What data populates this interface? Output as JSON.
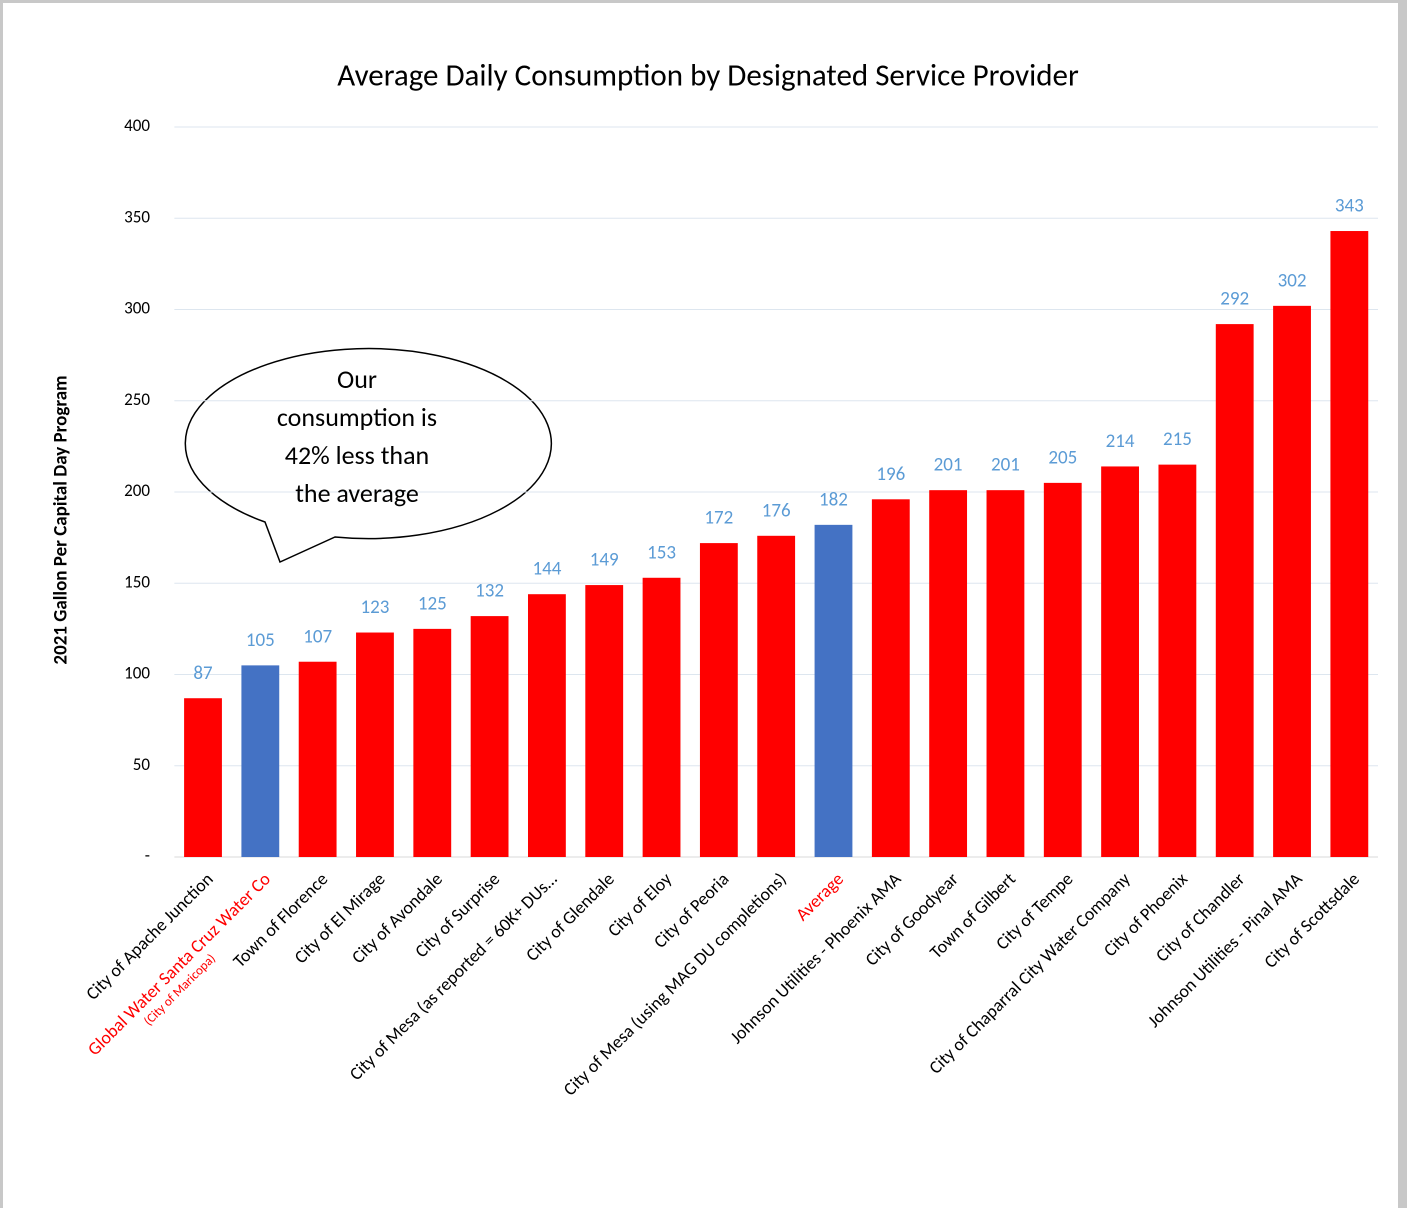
{
  "chart_data": {
    "type": "bar",
    "title": "Average Daily Consumption by Designated Service Provider",
    "y_label": "2021 Gallon Per Capital Day Program",
    "categories": [
      "City of Apache Junction",
      "Global Water Santa Cruz Water Co",
      "Town of Florence",
      "City of El Mirage",
      "City of Avondale",
      "City of Surprise",
      "City of Mesa (as reported = 60K+ DUs…",
      "City of Glendale",
      "City of Eloy",
      "City of Peoria",
      "City of Mesa (using MAG DU completions)",
      "Average",
      "Johnson Utilities - Phoenix AMA",
      "City of Goodyear",
      "Town of Gilbert",
      "City of Tempe",
      "City of Chaparral City Water Company",
      "City of Phoenix",
      "City of Chandler",
      "Johnson Utilities - Pinal AMA",
      "City of Scottsdale"
    ],
    "category_notes": [
      null,
      "(City of Maricopa)",
      null,
      null,
      null,
      null,
      null,
      null,
      null,
      null,
      null,
      null,
      null,
      null,
      null,
      null,
      null,
      null,
      null,
      null,
      null
    ],
    "category_label_colors": [
      "#000000",
      "#ff0000",
      "#000000",
      "#000000",
      "#000000",
      "#000000",
      "#000000",
      "#000000",
      "#000000",
      "#000000",
      "#000000",
      "#ff0000",
      "#000000",
      "#000000",
      "#000000",
      "#000000",
      "#000000",
      "#000000",
      "#000000",
      "#000000",
      "#000000"
    ],
    "values": [
      87,
      105,
      107,
      123,
      125,
      132,
      144,
      149,
      153,
      172,
      176,
      182,
      196,
      201,
      201,
      205,
      214,
      215,
      292,
      302,
      343
    ],
    "colors": [
      "#ff0000",
      "#4472c4",
      "#ff0000",
      "#ff0000",
      "#ff0000",
      "#ff0000",
      "#ff0000",
      "#ff0000",
      "#ff0000",
      "#ff0000",
      "#ff0000",
      "#4472c4",
      "#ff0000",
      "#ff0000",
      "#ff0000",
      "#ff0000",
      "#ff0000",
      "#ff0000",
      "#ff0000",
      "#ff0000",
      "#ff0000"
    ],
    "value_label_color": "#5b9bd5",
    "ylim": [
      0,
      400
    ],
    "yticks": [
      {
        "value": 0,
        "label": "-"
      },
      50,
      100,
      150,
      200,
      250,
      300,
      350,
      400
    ],
    "grid": true,
    "annotation": [
      "Our",
      "consumption is",
      "42% less than",
      "the average"
    ]
  }
}
